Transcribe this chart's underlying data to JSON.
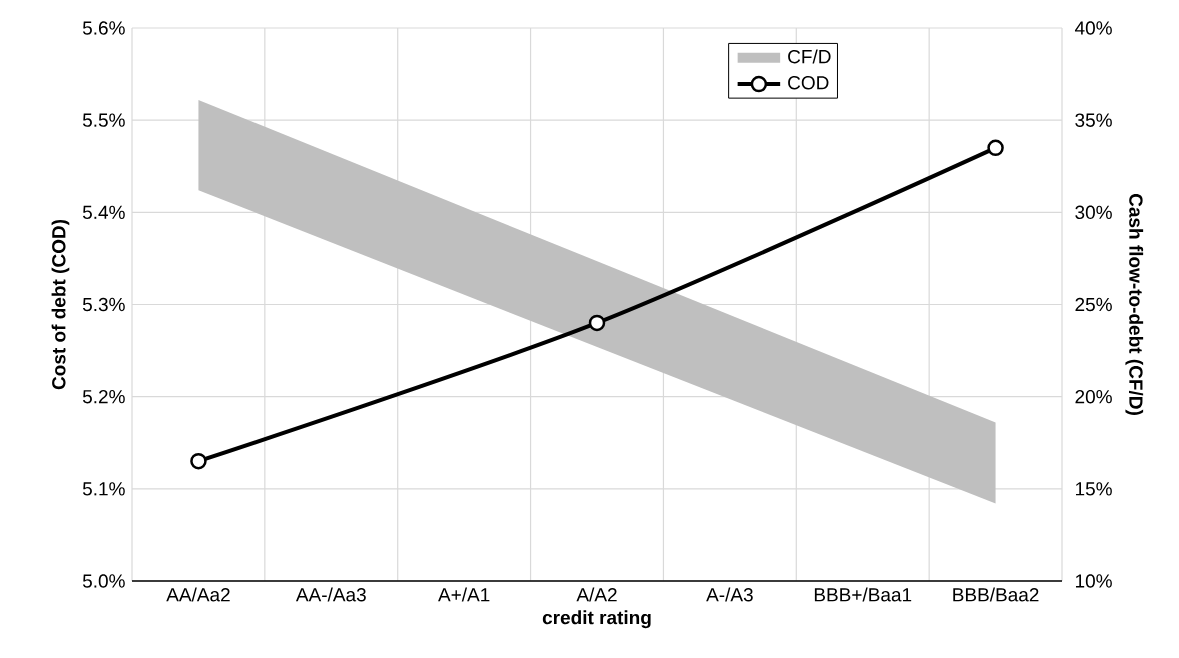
{
  "chart_data": {
    "type": "line",
    "xlabel": "credit rating",
    "ylabel": "Cost of debt (COD)",
    "y2label": "Cash flow-to-debt (CF/D)",
    "categories": [
      "AA/Aa2",
      "AA-/Aa3",
      "A+/A1",
      "A/A2",
      "A-/A3",
      "BBB+/Baa1",
      "BBB/Baa2"
    ],
    "series": [
      {
        "name": "CF/D",
        "type": "area",
        "axis": "y2",
        "color": "#bfbfbf",
        "values": [
          null,
          null,
          null,
          null,
          null,
          null,
          null
        ],
        "lower": [
          31.2,
          null,
          null,
          null,
          null,
          null,
          14.2
        ],
        "upper": [
          36.1,
          null,
          null,
          null,
          null,
          null,
          18.6
        ]
      },
      {
        "name": "COD",
        "color": "#000000",
        "values": [
          5.13,
          null,
          null,
          5.28,
          null,
          null,
          5.47
        ]
      }
    ],
    "ylim": [
      5.0,
      5.6
    ],
    "yticks": [
      {
        "value": 5.0,
        "label": "5.0%"
      },
      {
        "value": 5.1,
        "label": "5.1%"
      },
      {
        "value": 5.2,
        "label": "5.2%"
      },
      {
        "value": 5.3,
        "label": "5.3%"
      },
      {
        "value": 5.4,
        "label": "5.4%"
      },
      {
        "value": 5.5,
        "label": "5.5%"
      },
      {
        "value": 5.6,
        "label": "5.6%"
      }
    ],
    "y2lim": [
      10,
      40
    ],
    "y2ticks": [
      {
        "value": 10,
        "label": "10%"
      },
      {
        "value": 15,
        "label": "15%"
      },
      {
        "value": 20,
        "label": "20%"
      },
      {
        "value": 25,
        "label": "25%"
      },
      {
        "value": 30,
        "label": "30%"
      },
      {
        "value": 35,
        "label": "35%"
      },
      {
        "value": 40,
        "label": "40%"
      }
    ],
    "grid": true,
    "legend": "top right",
    "marker": "circle"
  }
}
